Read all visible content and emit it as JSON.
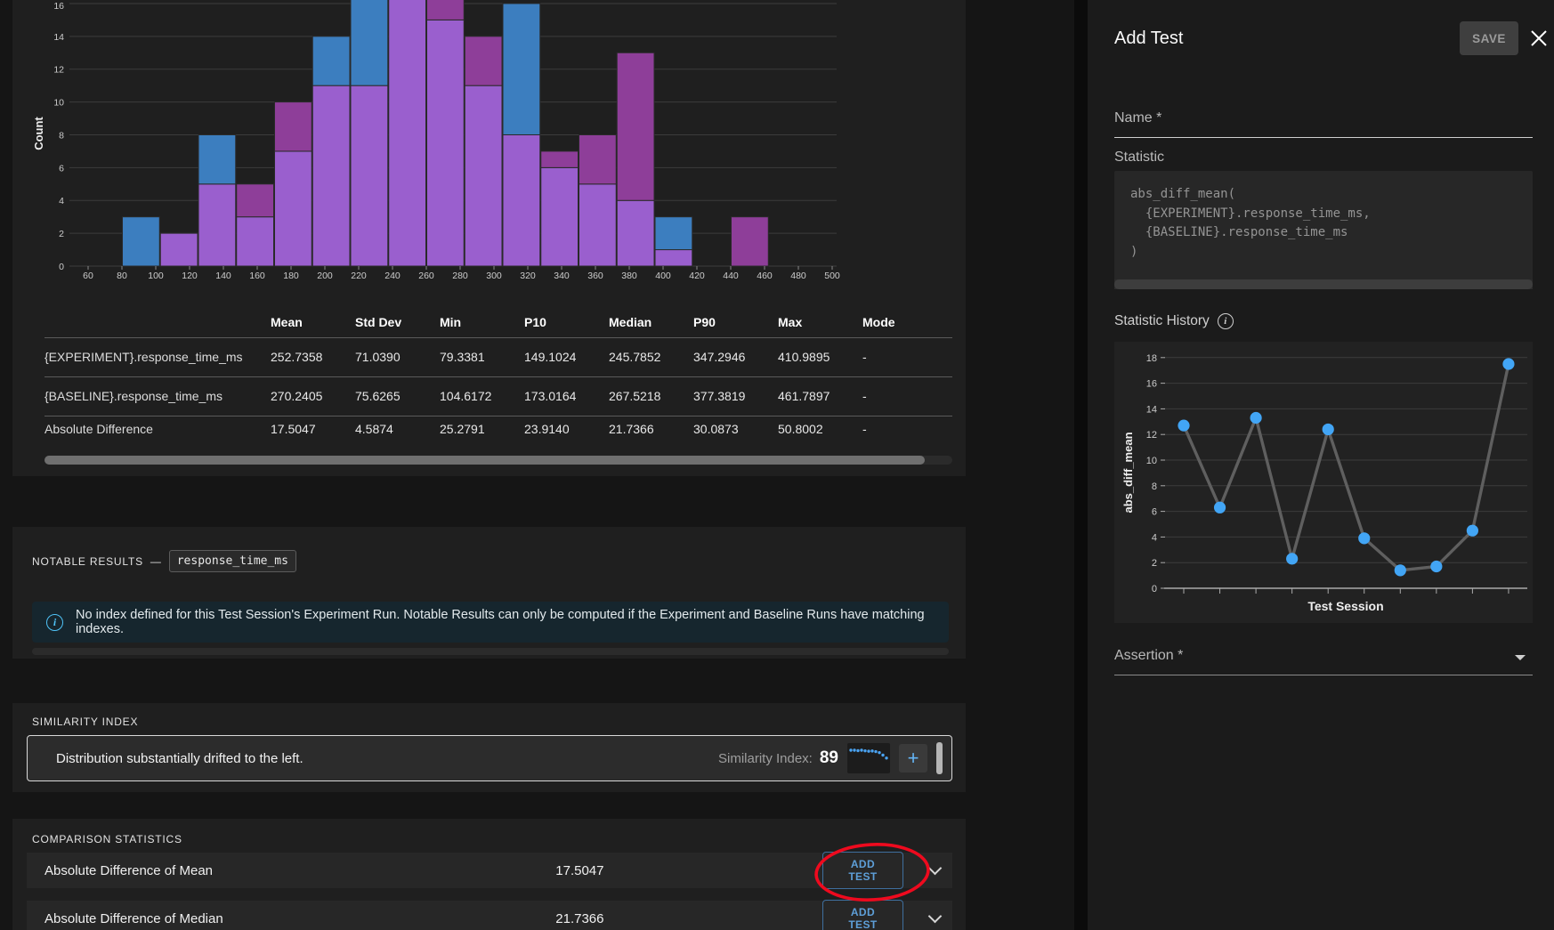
{
  "histogram": {
    "ylabel": "Count",
    "yticks": [
      0,
      2,
      4,
      6,
      8,
      10,
      12,
      14,
      16
    ],
    "xticks": [
      60,
      80,
      100,
      120,
      140,
      160,
      180,
      200,
      220,
      240,
      260,
      280,
      300,
      320,
      340,
      360,
      380,
      400,
      420,
      440,
      460,
      480,
      500
    ]
  },
  "table": {
    "headers": [
      "",
      "Mean",
      "Std Dev",
      "Min",
      "P10",
      "Median",
      "P90",
      "Max",
      "Mode"
    ],
    "rows": [
      {
        "label": "{EXPERIMENT}.response_time_ms",
        "values": [
          "252.7358",
          "71.0390",
          "79.3381",
          "149.1024",
          "245.7852",
          "347.2946",
          "410.9895",
          "-"
        ]
      },
      {
        "label": "{BASELINE}.response_time_ms",
        "values": [
          "270.2405",
          "75.6265",
          "104.6172",
          "173.0164",
          "267.5218",
          "377.3819",
          "461.7897",
          "-"
        ]
      },
      {
        "label": "Absolute Difference",
        "values": [
          "17.5047",
          "4.5874",
          "25.2791",
          "23.9140",
          "21.7366",
          "30.0873",
          "50.8002",
          "-"
        ]
      }
    ]
  },
  "notable": {
    "label": "NOTABLE RESULTS",
    "dash": "—",
    "chip": "response_time_ms",
    "banner": "No index defined for this Test Session's Experiment Run. Notable Results can only be computed if the Experiment and Baseline Runs have matching indexes."
  },
  "similarity": {
    "label": "SIMILARITY INDEX",
    "message": "Distribution substantially drifted to the left.",
    "index_label": "Similarity Index:",
    "index_value": "89",
    "plus": "+"
  },
  "comparison": {
    "label": "COMPARISON STATISTICS",
    "rows": [
      {
        "name": "Absolute Difference of Mean",
        "value": "17.5047",
        "button": "ADD TEST"
      },
      {
        "name": "Absolute Difference of Median",
        "value": "21.7366",
        "button": "ADD TEST"
      }
    ]
  },
  "drawer": {
    "title": "Add Test",
    "save": "SAVE",
    "name_label": "Name *",
    "statistic_label": "Statistic",
    "code": "abs_diff_mean(\n  {EXPERIMENT}.response_time_ms,\n  {BASELINE}.response_time_ms\n)",
    "history_label": "Statistic History",
    "assertion_label": "Assertion *"
  },
  "colors": {
    "experiment_blue": "#3c7ebf",
    "overlap_violet": "#9a5fce",
    "baseline_magenta": "#8e3e99",
    "grid": "#3c3c3c",
    "history_line": "#5f5f5f",
    "history_point": "#42a5f5",
    "annotation_red": "#ee0a1e",
    "spark_blue": "#4aa3f2"
  },
  "chart_data": [
    {
      "type": "histogram",
      "title": "",
      "xlabel": "",
      "ylabel": "Count",
      "xlim": [
        48,
        503
      ],
      "ylim": [
        0,
        16.2
      ],
      "bin_width": 22.5,
      "bin_starts": [
        80,
        102.5,
        125,
        147.5,
        170,
        192.5,
        215,
        237.5,
        260,
        282.5,
        305,
        327.5,
        350,
        372.5,
        395,
        417.5,
        440
      ],
      "series": [
        {
          "name": "{EXPERIMENT}.response_time_ms",
          "values": [
            3,
            2,
            8,
            3,
            7,
            14,
            17,
            17,
            15,
            11,
            16,
            6,
            5,
            4,
            3,
            0,
            0
          ]
        },
        {
          "name": "{BASELINE}.response_time_ms",
          "values": [
            0,
            2,
            5,
            5,
            10,
            11,
            11,
            17,
            17,
            14,
            8,
            7,
            8,
            13,
            1,
            0,
            3
          ]
        }
      ],
      "grid": true,
      "legend": false
    },
    {
      "type": "line",
      "title": "Statistic History",
      "xlabel": "Test Session",
      "ylabel": "abs_diff_mean",
      "ylim": [
        0,
        18
      ],
      "x": [
        1,
        2,
        3,
        4,
        5,
        6,
        7,
        8,
        9,
        10
      ],
      "values": [
        12.7,
        6.3,
        13.3,
        2.3,
        12.4,
        3.9,
        1.4,
        1.7,
        4.5,
        17.5
      ],
      "grid": true,
      "legend": false
    },
    {
      "type": "line",
      "title": "similarity-sparkline",
      "values": [
        93,
        93,
        92.8,
        93,
        92.7,
        92.5,
        92.6,
        92.3,
        91.8,
        90.5,
        89
      ]
    }
  ]
}
